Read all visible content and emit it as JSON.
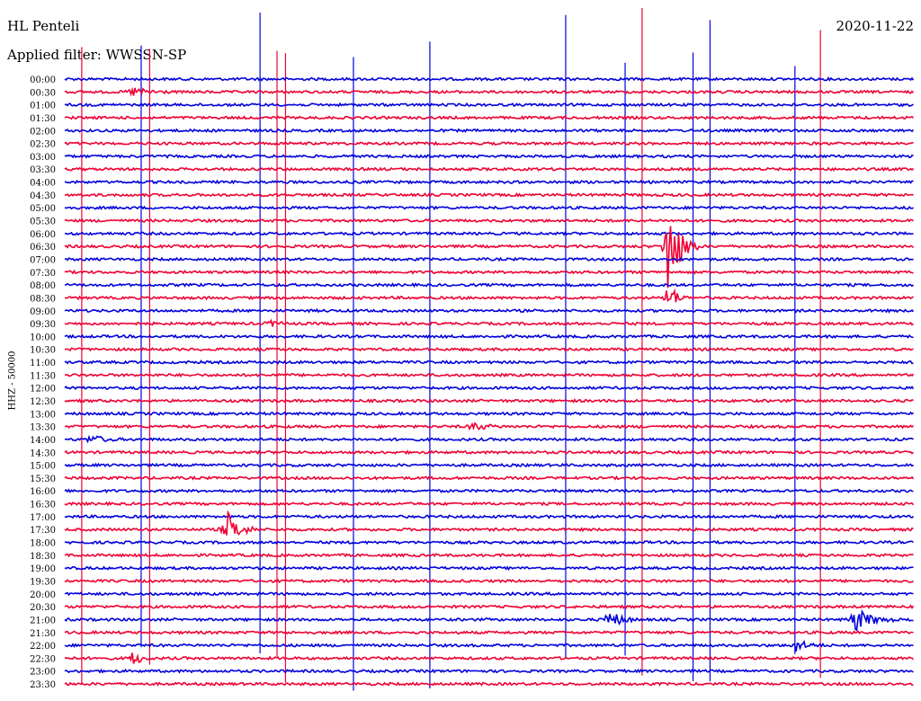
{
  "header": {
    "station": "HL Penteli",
    "filter": "Applied filter: WWSSN-SP",
    "date": "2020-11-22",
    "channel": "HHZ - 50000"
  },
  "colors": {
    "even_row": "#0000dd",
    "odd_row": "#ee0033",
    "text": "#000000"
  },
  "chart_data": {
    "type": "line",
    "title": "",
    "row_labels": [
      "00:00",
      "00:30",
      "01:00",
      "01:30",
      "02:00",
      "02:30",
      "03:00",
      "03:30",
      "04:00",
      "04:30",
      "05:00",
      "05:30",
      "06:00",
      "06:30",
      "07:00",
      "07:30",
      "08:00",
      "08:30",
      "09:00",
      "09:30",
      "10:00",
      "10:30",
      "11:00",
      "11:30",
      "12:00",
      "12:30",
      "13:00",
      "13:30",
      "14:00",
      "14:30",
      "15:00",
      "15:30",
      "16:00",
      "16:30",
      "17:00",
      "17:30",
      "18:00",
      "18:30",
      "19:00",
      "19:30",
      "20:00",
      "20:30",
      "21:00",
      "21:30",
      "22:00",
      "22:30",
      "23:00",
      "23:30"
    ],
    "row_minutes": 30,
    "events": [
      {
        "row": 1,
        "t": 0.08,
        "amp": 5,
        "len": 0.04
      },
      {
        "row": 13,
        "t": 0.71,
        "amp": 60,
        "len": 0.03
      },
      {
        "row": 17,
        "t": 0.71,
        "amp": 20,
        "len": 0.02
      },
      {
        "row": 19,
        "t": 0.24,
        "amp": 4,
        "len": 0.02
      },
      {
        "row": 27,
        "t": 0.48,
        "amp": 5,
        "len": 0.03
      },
      {
        "row": 28,
        "t": 0.03,
        "amp": 5,
        "len": 0.03
      },
      {
        "row": 35,
        "t": 0.19,
        "amp": 22,
        "len": 0.03
      },
      {
        "row": 42,
        "t": 0.64,
        "amp": 11,
        "len": 0.03
      },
      {
        "row": 42,
        "t": 0.93,
        "amp": 14,
        "len": 0.04
      },
      {
        "row": 44,
        "t": 0.86,
        "amp": 7,
        "len": 0.03
      },
      {
        "row": 45,
        "t": 0.08,
        "amp": 9,
        "len": 0.02
      }
    ],
    "spikes": [
      {
        "t": 0.02,
        "color": "odd"
      },
      {
        "t": 0.09,
        "color": "even"
      },
      {
        "t": 0.1,
        "color": "odd"
      },
      {
        "t": 0.23,
        "color": "even"
      },
      {
        "t": 0.25,
        "color": "odd"
      },
      {
        "t": 0.26,
        "color": "odd"
      },
      {
        "t": 0.34,
        "color": "even"
      },
      {
        "t": 0.43,
        "color": "even"
      },
      {
        "t": 0.59,
        "color": "even"
      },
      {
        "t": 0.66,
        "color": "even"
      },
      {
        "t": 0.68,
        "color": "odd"
      },
      {
        "t": 0.74,
        "color": "even"
      },
      {
        "t": 0.76,
        "color": "even"
      },
      {
        "t": 0.86,
        "color": "even"
      },
      {
        "t": 0.89,
        "color": "odd"
      }
    ]
  }
}
